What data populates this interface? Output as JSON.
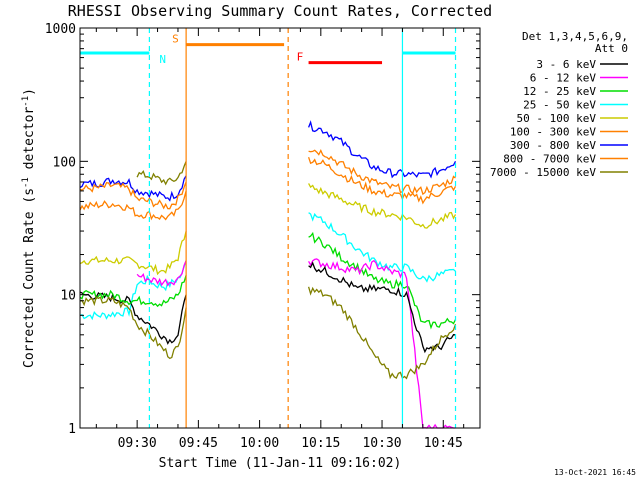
{
  "chart_data": {
    "type": "line",
    "title": "RHESSI Observing Summary Count Rates, Corrected",
    "xlabel": "Start Time (11-Jan-11 09:16:02)",
    "ylabel_parts": [
      "Corrected Count Rate (s",
      "-1",
      " detector",
      "-1",
      ")"
    ],
    "yscale": "log",
    "ylim": [
      1,
      1000
    ],
    "xlim_minutes": [
      "09:16",
      "10:54"
    ],
    "x_ticks": [
      "09:30",
      "09:45",
      "10:00",
      "10:15",
      "10:30",
      "10:45"
    ],
    "y_ticks": [
      "1",
      "10",
      "100",
      "1000"
    ],
    "legend_header": [
      "Det 1,3,4,5,6,9,",
      "Att 0"
    ],
    "footer_date": "13-Oct-2021 16:45",
    "flag_labels": {
      "N": "N",
      "S": "S",
      "F": "F"
    },
    "series": [
      {
        "name": "3 - 6 keV",
        "color": "#000000"
      },
      {
        "name": "6 - 12 keV",
        "color": "#ff00ff"
      },
      {
        "name": "12 - 25 keV",
        "color": "#00dd00"
      },
      {
        "name": "25 - 50 keV",
        "color": "#00ffff"
      },
      {
        "name": "50 - 100 keV",
        "color": "#cccc00"
      },
      {
        "name": "100 - 300 keV",
        "color": "#ff8000"
      },
      {
        "name": "300 - 800 keV",
        "color": "#0000ff"
      },
      {
        "name": "800 - 7000 keV",
        "color": "#ff8000"
      },
      {
        "name": "7000 - 15000 keV",
        "color": "#808000"
      }
    ],
    "curves": [
      {
        "series": 3,
        "points": [
          [
            "09:16",
            7
          ],
          [
            "09:22",
            7
          ],
          [
            "09:28",
            7.5
          ],
          [
            "09:30",
            12
          ],
          [
            "09:33",
            13
          ],
          [
            "09:34",
            12
          ],
          [
            "09:37",
            11.5
          ],
          [
            "09:39",
            12.5
          ],
          [
            "09:41",
            14
          ],
          [
            "09:42",
            18
          ]
        ]
      },
      {
        "series": 4,
        "points": [
          [
            "09:16",
            18
          ],
          [
            "09:22",
            18
          ],
          [
            "09:28",
            18
          ],
          [
            "09:30",
            17
          ],
          [
            "09:33",
            16
          ],
          [
            "09:36",
            15
          ],
          [
            "09:38",
            16
          ],
          [
            "09:40",
            19
          ],
          [
            "09:42",
            30
          ]
        ]
      },
      {
        "series": 6,
        "points": [
          [
            "09:16",
            68
          ],
          [
            "09:20",
            68
          ],
          [
            "09:24",
            72
          ],
          [
            "09:28",
            70
          ],
          [
            "09:30",
            60
          ],
          [
            "09:33",
            58
          ],
          [
            "09:36",
            55
          ],
          [
            "09:38",
            54
          ],
          [
            "09:40",
            58
          ],
          [
            "09:42",
            78
          ]
        ]
      },
      {
        "series": 5,
        "points": [
          [
            "09:16",
            62
          ],
          [
            "09:20",
            63
          ],
          [
            "09:24",
            66
          ],
          [
            "09:28",
            62
          ],
          [
            "09:30",
            52
          ],
          [
            "09:33",
            50
          ],
          [
            "09:36",
            47
          ],
          [
            "09:38",
            46
          ],
          [
            "09:40",
            52
          ],
          [
            "09:42",
            70
          ]
        ]
      },
      {
        "series": 7,
        "points": [
          [
            "09:16",
            45
          ],
          [
            "09:20",
            47
          ],
          [
            "09:24",
            48
          ],
          [
            "09:28",
            45
          ],
          [
            "09:30",
            40
          ],
          [
            "09:33",
            40
          ],
          [
            "09:36",
            38
          ],
          [
            "09:38",
            38
          ],
          [
            "09:40",
            42
          ],
          [
            "09:42",
            60
          ]
        ]
      },
      {
        "series": 8,
        "points": [
          [
            "09:30",
            80
          ],
          [
            "09:33",
            78
          ],
          [
            "09:36",
            72
          ],
          [
            "09:38",
            70
          ],
          [
            "09:40",
            75
          ],
          [
            "09:42",
            100
          ]
        ]
      },
      {
        "series": 0,
        "points": [
          [
            "09:16",
            10
          ],
          [
            "09:24",
            9.5
          ],
          [
            "09:28",
            9
          ],
          [
            "09:30",
            7
          ],
          [
            "09:33",
            6
          ],
          [
            "09:36",
            5
          ],
          [
            "09:38",
            4.5
          ],
          [
            "09:40",
            5
          ],
          [
            "09:42",
            10
          ]
        ]
      },
      {
        "series": 2,
        "points": [
          [
            "09:16",
            10
          ],
          [
            "09:24",
            10
          ],
          [
            "09:28",
            9
          ],
          [
            "09:30",
            9
          ],
          [
            "09:33",
            9
          ],
          [
            "09:36",
            8.5
          ],
          [
            "09:38",
            9
          ],
          [
            "09:40",
            10
          ],
          [
            "09:42",
            14
          ]
        ]
      },
      {
        "series": 1,
        "points": [
          [
            "09:30",
            14
          ],
          [
            "09:33",
            13
          ],
          [
            "09:36",
            12.5
          ],
          [
            "09:38",
            12.5
          ],
          [
            "09:40",
            13
          ],
          [
            "09:42",
            18
          ]
        ]
      },
      {
        "series": 8,
        "points": [
          [
            "09:16",
            9
          ],
          [
            "09:24",
            9
          ],
          [
            "09:28",
            8
          ],
          [
            "09:30",
            6
          ],
          [
            "09:33",
            5
          ],
          [
            "09:36",
            4
          ],
          [
            "09:38",
            3.5
          ],
          [
            "09:40",
            4
          ],
          [
            "09:42",
            8
          ]
        ]
      },
      {
        "series": 6,
        "points": [
          [
            "10:12",
            185
          ],
          [
            "10:16",
            170
          ],
          [
            "10:20",
            140
          ],
          [
            "10:24",
            110
          ],
          [
            "10:28",
            90
          ],
          [
            "10:32",
            82
          ],
          [
            "10:36",
            80
          ],
          [
            "10:40",
            78
          ],
          [
            "10:44",
            85
          ],
          [
            "10:48",
            100
          ]
        ]
      },
      {
        "series": 5,
        "points": [
          [
            "10:12",
            125
          ],
          [
            "10:16",
            115
          ],
          [
            "10:20",
            95
          ],
          [
            "10:24",
            80
          ],
          [
            "10:28",
            70
          ],
          [
            "10:32",
            64
          ],
          [
            "10:36",
            62
          ],
          [
            "10:40",
            60
          ],
          [
            "10:44",
            65
          ],
          [
            "10:48",
            75
          ]
        ]
      },
      {
        "series": 7,
        "points": [
          [
            "10:12",
            105
          ],
          [
            "10:16",
            95
          ],
          [
            "10:20",
            80
          ],
          [
            "10:24",
            68
          ],
          [
            "10:28",
            60
          ],
          [
            "10:32",
            56
          ],
          [
            "10:36",
            55
          ],
          [
            "10:40",
            52
          ],
          [
            "10:44",
            58
          ],
          [
            "10:48",
            65
          ]
        ]
      },
      {
        "series": 4,
        "points": [
          [
            "10:12",
            65
          ],
          [
            "10:16",
            58
          ],
          [
            "10:20",
            52
          ],
          [
            "10:24",
            46
          ],
          [
            "10:28",
            42
          ],
          [
            "10:32",
            40
          ],
          [
            "10:36",
            38
          ],
          [
            "10:40",
            33
          ],
          [
            "10:44",
            36
          ],
          [
            "10:48",
            40
          ]
        ]
      },
      {
        "series": 3,
        "points": [
          [
            "10:12",
            40
          ],
          [
            "10:16",
            35
          ],
          [
            "10:20",
            28
          ],
          [
            "10:24",
            22
          ],
          [
            "10:28",
            18
          ],
          [
            "10:32",
            16
          ],
          [
            "10:36",
            16
          ],
          [
            "10:40",
            13
          ],
          [
            "10:44",
            14
          ],
          [
            "10:48",
            15
          ]
        ]
      },
      {
        "series": 2,
        "points": [
          [
            "10:12",
            28
          ],
          [
            "10:16",
            24
          ],
          [
            "10:20",
            19
          ],
          [
            "10:24",
            16
          ],
          [
            "10:28",
            13
          ],
          [
            "10:32",
            12
          ],
          [
            "10:36",
            12
          ],
          [
            "10:40",
            6
          ],
          [
            "10:44",
            6
          ],
          [
            "10:48",
            6.5
          ]
        ]
      },
      {
        "series": 1,
        "points": [
          [
            "10:12",
            18
          ],
          [
            "10:16",
            17
          ],
          [
            "10:20",
            16
          ],
          [
            "10:24",
            15
          ],
          [
            "10:28",
            17
          ],
          [
            "10:32",
            15
          ],
          [
            "10:36",
            14
          ],
          [
            "10:40",
            1
          ],
          [
            "10:44",
            1
          ],
          [
            "10:48",
            1
          ]
        ]
      },
      {
        "series": 0,
        "points": [
          [
            "10:12",
            17
          ],
          [
            "10:16",
            15
          ],
          [
            "10:20",
            13
          ],
          [
            "10:24",
            11
          ],
          [
            "10:28",
            11
          ],
          [
            "10:32",
            11
          ],
          [
            "10:36",
            10
          ],
          [
            "10:40",
            4
          ],
          [
            "10:44",
            4
          ],
          [
            "10:48",
            5
          ]
        ]
      },
      {
        "series": 8,
        "points": [
          [
            "10:12",
            11
          ],
          [
            "10:16",
            10
          ],
          [
            "10:20",
            8
          ],
          [
            "10:24",
            5.5
          ],
          [
            "10:28",
            3.5
          ],
          [
            "10:32",
            2.5
          ],
          [
            "10:36",
            2.5
          ],
          [
            "10:40",
            3
          ],
          [
            "10:44",
            4.5
          ],
          [
            "10:48",
            6
          ]
        ]
      }
    ],
    "flag_bars": [
      {
        "label": "N",
        "color": "#00ffff",
        "start": "09:16",
        "end": "09:33",
        "level": 650
      },
      {
        "label": "S",
        "color": "#ff8000",
        "start": "09:42",
        "end": "10:06",
        "level": 750
      },
      {
        "label": "F",
        "color": "#ff0000",
        "start": "10:12",
        "end": "10:30",
        "level": 550
      },
      {
        "label": "",
        "color": "#00ffff",
        "start": "10:35",
        "end": "10:48",
        "level": 650
      }
    ],
    "event_lines": [
      {
        "time": "09:33",
        "color": "#00ffff",
        "style": "dashed"
      },
      {
        "time": "09:42",
        "color": "#ff8000",
        "style": "solid"
      },
      {
        "time": "10:07",
        "color": "#ff8000",
        "style": "dashed"
      },
      {
        "time": "10:35",
        "color": "#00ffff",
        "style": "solid"
      },
      {
        "time": "10:48",
        "color": "#00ffff",
        "style": "dashed"
      }
    ]
  }
}
